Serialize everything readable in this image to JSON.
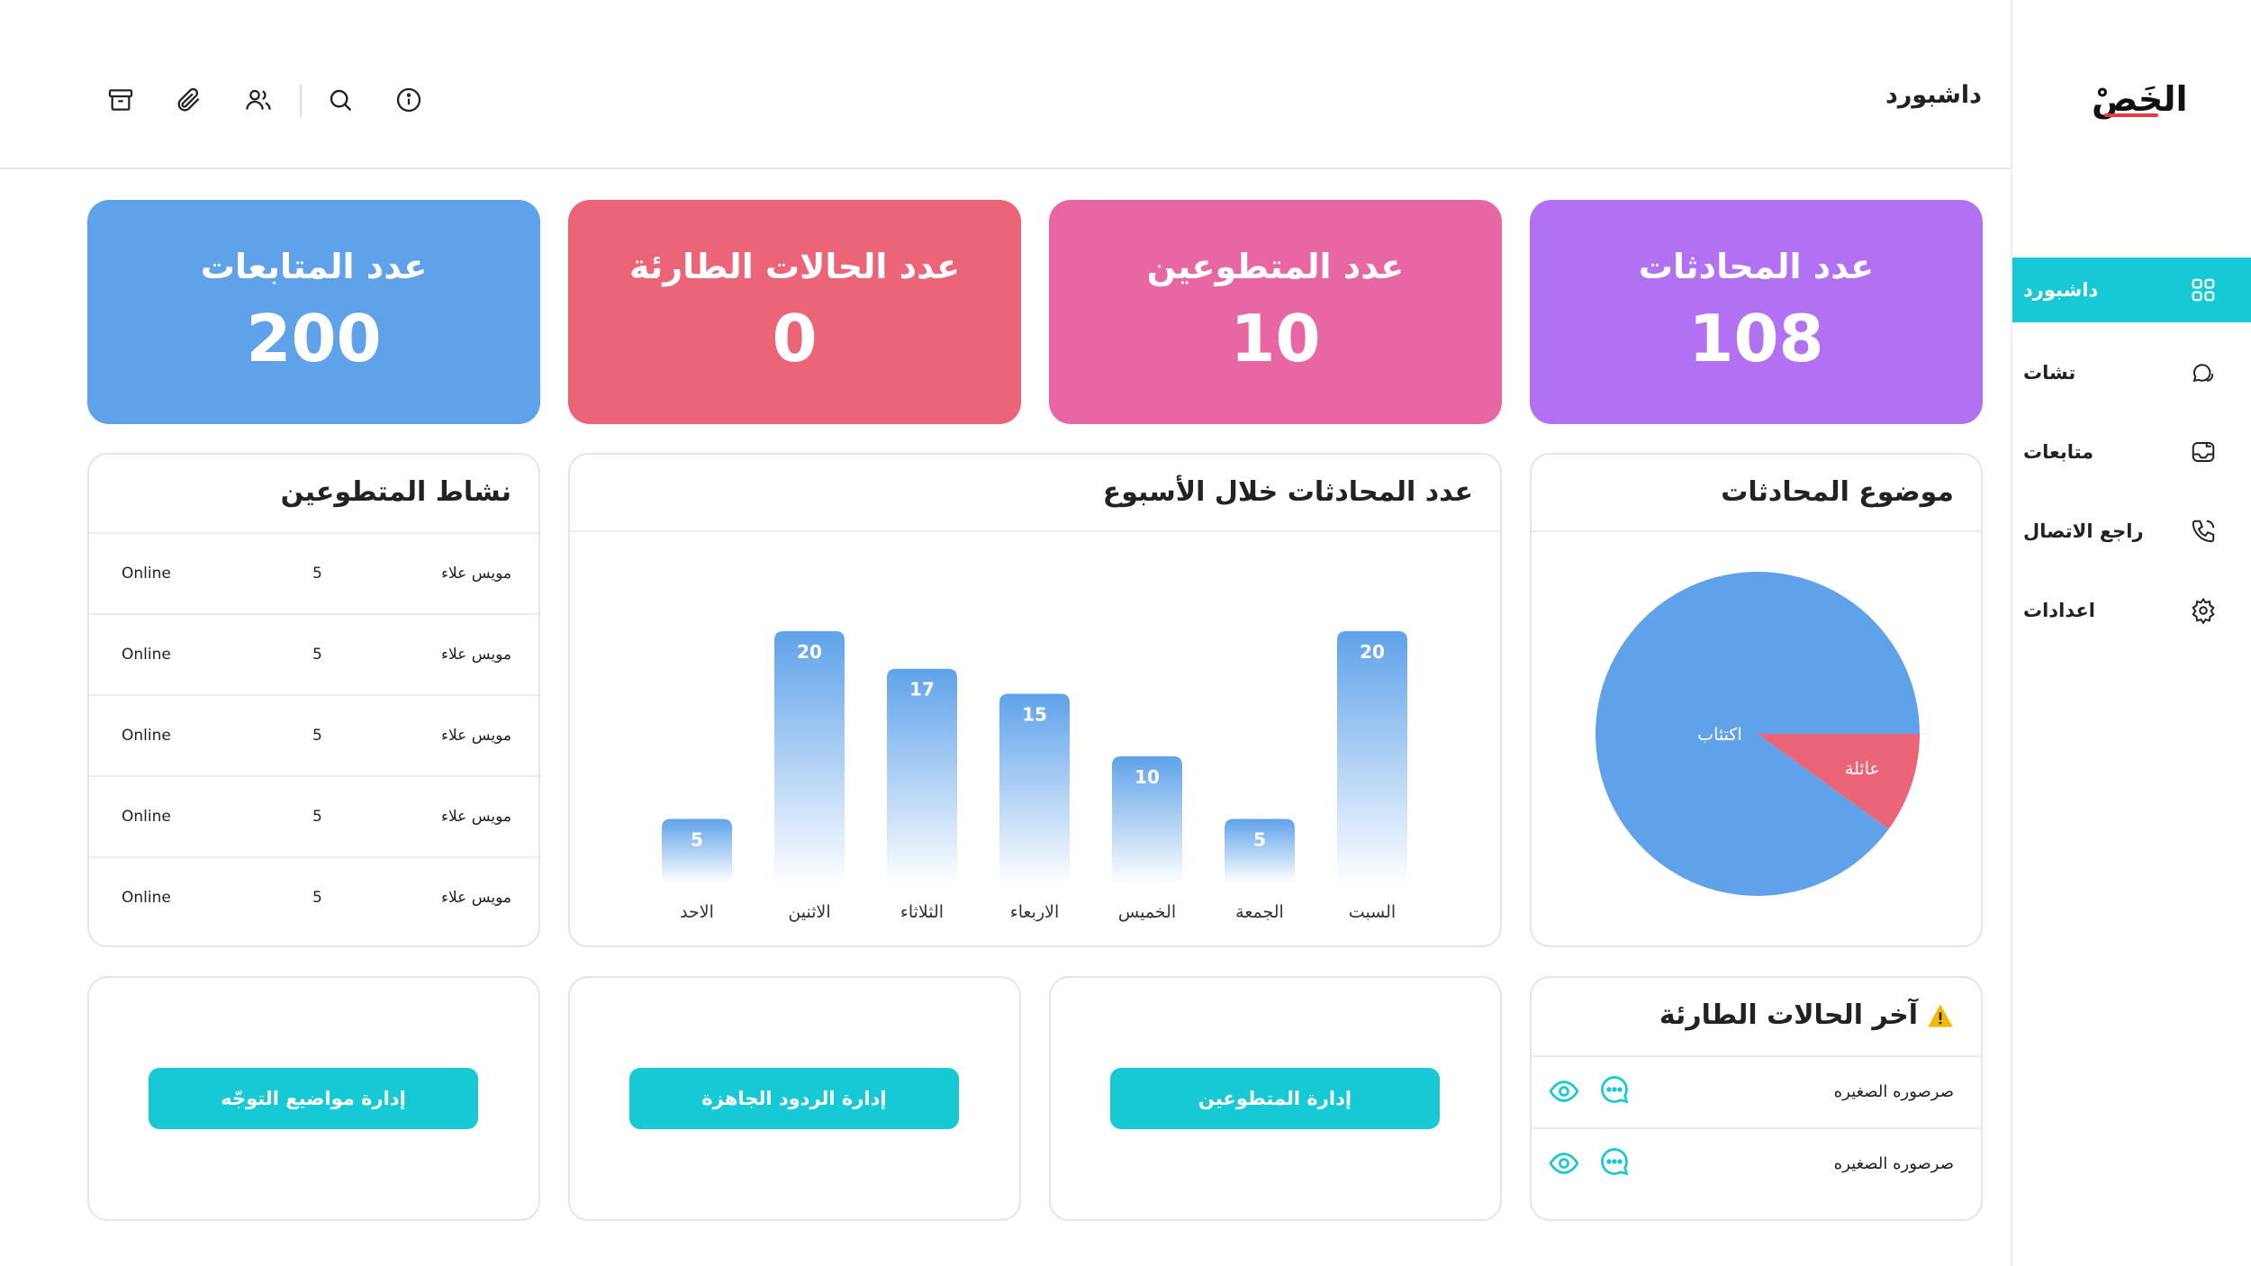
{
  "sidebar": {
    "logo": "الخَصْ",
    "items": [
      {
        "label": "داشبورد",
        "icon": "grid-icon",
        "active": true
      },
      {
        "label": "تشات",
        "icon": "chat-icon",
        "active": false
      },
      {
        "label": "متابعات",
        "icon": "followup-icon",
        "active": false
      },
      {
        "label": "راجع الاتصال",
        "icon": "phone-icon",
        "active": false
      },
      {
        "label": "اعدادات",
        "icon": "gear-icon",
        "active": false
      }
    ]
  },
  "header": {
    "title": "داشبورد",
    "icons": [
      "info-icon",
      "search-icon",
      "users-icon",
      "paperclip-icon",
      "archive-icon"
    ]
  },
  "stats": [
    {
      "label": "عدد المحادثات",
      "value": "108",
      "color": "#b271f2"
    },
    {
      "label": "عدد المتطوعين",
      "value": "10",
      "color": "#e966a5"
    },
    {
      "label": "عدد الحالات الطارئة",
      "value": "0",
      "color": "#eb6478"
    },
    {
      "label": "عدد المتابعات",
      "value": "200",
      "color": "#5fa2ea"
    }
  ],
  "volunteers": {
    "title": "نشاط المتطوعين",
    "rows": [
      {
        "name": "مويس علاء",
        "count": "5",
        "status": "Online"
      },
      {
        "name": "مويس علاء",
        "count": "5",
        "status": "Online"
      },
      {
        "name": "مويس علاء",
        "count": "5",
        "status": "Online"
      },
      {
        "name": "مويس علاء",
        "count": "5",
        "status": "Online"
      },
      {
        "name": "مويس علاء",
        "count": "5",
        "status": "Online"
      }
    ]
  },
  "weekly": {
    "title": "عدد المحادثات خلال الأسبوع"
  },
  "topics": {
    "title": "موضوع المحادثات"
  },
  "chart_data": [
    {
      "type": "bar",
      "title": "عدد المحادثات خلال الأسبوع",
      "categories": [
        "الاحد",
        "الاثنين",
        "الثلاثاء",
        "الاربعاء",
        "الخميس",
        "الجمعة",
        "السبت"
      ],
      "values": [
        5,
        20,
        17,
        15,
        10,
        5,
        20
      ],
      "ylim": [
        0,
        20
      ],
      "color": "#5fa2ea"
    },
    {
      "type": "pie",
      "title": "موضوع المحادثات",
      "categories": [
        "اكتئاب",
        "عائلة"
      ],
      "values": [
        90,
        10
      ],
      "colors": [
        "#5fa2ea",
        "#eb6478"
      ]
    }
  ],
  "actions": [
    {
      "label": "إدارة مواضيع التوجّه"
    },
    {
      "label": "إدارة الردود الجاهزة"
    },
    {
      "label": "إدارة المتطوعين"
    }
  ],
  "emergencies": {
    "title": "آخر الحالات الطارئة",
    "title_icon": "warning-icon",
    "rows": [
      {
        "name": "صرصوره الصغيره"
      },
      {
        "name": "صرصوره الصغيره"
      }
    ]
  },
  "colors": {
    "accent": "#16c9d4"
  }
}
